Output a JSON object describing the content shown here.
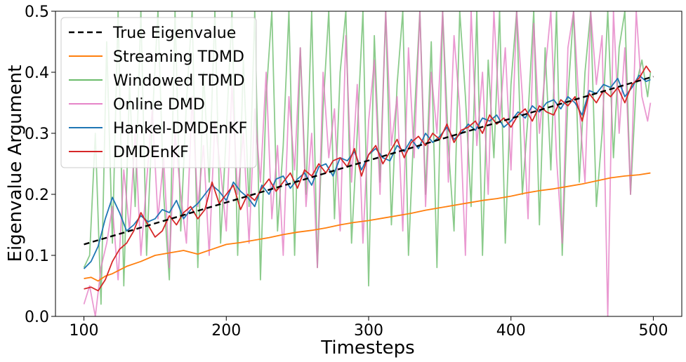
{
  "chart_data": {
    "type": "line",
    "xlabel": "Timesteps",
    "ylabel": "Eigenvalue Argument",
    "xlim": [
      80,
      520
    ],
    "ylim": [
      0.0,
      0.5
    ],
    "x_ticks": [
      100,
      200,
      300,
      400,
      500
    ],
    "y_ticks": [
      0.0,
      0.1,
      0.2,
      0.3,
      0.4,
      0.5
    ],
    "x_tick_labels": [
      "100",
      "200",
      "300",
      "400",
      "500"
    ],
    "y_tick_labels": [
      "0.0",
      "0.1",
      "0.2",
      "0.3",
      "0.4",
      "0.5"
    ],
    "legend_position": "top-left",
    "series": [
      {
        "name": "True Eigenvalue",
        "color": "#000000",
        "dashed": true,
        "x": [
          100,
          500
        ],
        "y": [
          0.118,
          0.393
        ]
      },
      {
        "name": "Streaming TDMD",
        "color": "#ff7f0e",
        "x": [
          100,
          105,
          110,
          115,
          120,
          130,
          140,
          150,
          160,
          170,
          180,
          190,
          200,
          210,
          220,
          230,
          240,
          250,
          260,
          270,
          280,
          290,
          300,
          310,
          320,
          330,
          340,
          350,
          360,
          370,
          380,
          390,
          400,
          410,
          420,
          430,
          440,
          450,
          460,
          470,
          480,
          490,
          498
        ],
        "y": [
          0.062,
          0.064,
          0.058,
          0.066,
          0.07,
          0.082,
          0.09,
          0.1,
          0.104,
          0.108,
          0.102,
          0.11,
          0.118,
          0.121,
          0.125,
          0.129,
          0.134,
          0.138,
          0.141,
          0.145,
          0.15,
          0.154,
          0.157,
          0.161,
          0.165,
          0.169,
          0.174,
          0.178,
          0.182,
          0.186,
          0.19,
          0.193,
          0.197,
          0.202,
          0.206,
          0.209,
          0.213,
          0.217,
          0.222,
          0.227,
          0.23,
          0.232,
          0.235
        ]
      },
      {
        "name": "Windowed TDMD",
        "color": "#2ca02c",
        "opacity": 0.55,
        "x": [
          100,
          104,
          108,
          112,
          116,
          120,
          124,
          128,
          132,
          136,
          140,
          144,
          148,
          152,
          156,
          160,
          164,
          168,
          172,
          176,
          180,
          184,
          188,
          192,
          196,
          200,
          204,
          208,
          212,
          216,
          220,
          224,
          228,
          232,
          236,
          240,
          244,
          248,
          252,
          256,
          260,
          264,
          268,
          272,
          276,
          280,
          284,
          288,
          292,
          296,
          300,
          304,
          308,
          312,
          316,
          320,
          324,
          328,
          332,
          336,
          340,
          344,
          348,
          352,
          356,
          360,
          364,
          368,
          372,
          376,
          380,
          384,
          388,
          392,
          396,
          400,
          404,
          408,
          412,
          416,
          420,
          424,
          428,
          432,
          436,
          440,
          444,
          448,
          452,
          456,
          460,
          464,
          468,
          472,
          476,
          480,
          484,
          488,
          492,
          496,
          498
        ],
        "y": [
          0.08,
          0.1,
          0.3,
          0.02,
          0.45,
          0.12,
          0.5,
          0.05,
          0.38,
          0.18,
          0.5,
          0.1,
          0.32,
          0.5,
          0.2,
          0.06,
          0.5,
          0.14,
          0.35,
          0.5,
          0.08,
          0.4,
          0.22,
          0.5,
          0.12,
          0.3,
          0.5,
          0.1,
          0.42,
          0.18,
          0.5,
          0.06,
          0.36,
          0.5,
          0.14,
          0.28,
          0.5,
          0.1,
          0.44,
          0.2,
          0.5,
          0.08,
          0.34,
          0.5,
          0.16,
          0.4,
          0.5,
          0.12,
          0.3,
          0.5,
          0.05,
          0.46,
          0.22,
          0.5,
          0.15,
          0.38,
          0.5,
          0.1,
          0.32,
          0.5,
          0.2,
          0.45,
          0.08,
          0.5,
          0.28,
          0.14,
          0.5,
          0.36,
          0.18,
          0.5,
          0.1,
          0.42,
          0.26,
          0.5,
          0.12,
          0.38,
          0.5,
          0.2,
          0.33,
          0.5,
          0.15,
          0.44,
          0.24,
          0.5,
          0.1,
          0.36,
          0.5,
          0.22,
          0.4,
          0.5,
          0.18,
          0.3,
          0.5,
          0.26,
          0.44,
          0.5,
          0.2,
          0.38,
          0.42,
          0.36,
          0.4
        ]
      },
      {
        "name": "Online DMD",
        "color": "#e377c2",
        "opacity": 0.75,
        "x": [
          100,
          104,
          108,
          112,
          116,
          120,
          124,
          128,
          132,
          136,
          140,
          144,
          148,
          152,
          156,
          160,
          164,
          168,
          172,
          176,
          180,
          184,
          188,
          192,
          196,
          200,
          204,
          208,
          212,
          216,
          220,
          224,
          228,
          232,
          236,
          240,
          244,
          248,
          252,
          256,
          260,
          264,
          268,
          272,
          276,
          280,
          284,
          288,
          292,
          296,
          300,
          304,
          308,
          312,
          316,
          320,
          324,
          328,
          332,
          336,
          340,
          344,
          348,
          352,
          356,
          360,
          364,
          368,
          372,
          376,
          380,
          384,
          388,
          392,
          396,
          400,
          404,
          408,
          412,
          416,
          420,
          424,
          428,
          432,
          436,
          440,
          444,
          448,
          452,
          456,
          460,
          464,
          468,
          472,
          476,
          480,
          484,
          488,
          492,
          496,
          498
        ],
        "y": [
          0.02,
          0.05,
          0.0,
          0.08,
          0.12,
          0.18,
          0.06,
          0.24,
          0.14,
          0.3,
          0.1,
          0.22,
          0.34,
          0.16,
          0.26,
          0.08,
          0.3,
          0.2,
          0.12,
          0.36,
          0.18,
          0.28,
          0.1,
          0.32,
          0.24,
          0.14,
          0.38,
          0.2,
          0.3,
          0.12,
          0.34,
          0.22,
          0.4,
          0.16,
          0.28,
          0.1,
          0.36,
          0.24,
          0.44,
          0.18,
          0.3,
          0.08,
          0.4,
          0.26,
          0.34,
          0.14,
          0.46,
          0.22,
          0.38,
          0.12,
          0.32,
          0.42,
          0.2,
          0.5,
          0.28,
          0.36,
          0.14,
          0.44,
          0.26,
          0.5,
          0.18,
          0.4,
          0.3,
          0.5,
          0.22,
          0.46,
          0.34,
          0.1,
          0.5,
          0.28,
          0.4,
          0.2,
          0.5,
          0.32,
          0.44,
          0.24,
          0.5,
          0.36,
          0.16,
          0.48,
          0.3,
          0.4,
          0.5,
          0.26,
          0.12,
          0.44,
          0.5,
          0.34,
          0.22,
          0.5,
          0.38,
          0.46,
          0.0,
          0.5,
          0.3,
          0.44,
          0.2,
          0.5,
          0.36,
          0.32,
          0.35
        ]
      },
      {
        "name": "Hankel-DMDEnKF",
        "color": "#1f77b4",
        "x": [
          100,
          105,
          110,
          115,
          120,
          125,
          130,
          135,
          140,
          145,
          150,
          155,
          160,
          165,
          170,
          175,
          180,
          185,
          190,
          195,
          200,
          205,
          210,
          215,
          220,
          225,
          230,
          235,
          240,
          245,
          250,
          255,
          260,
          265,
          270,
          275,
          280,
          285,
          290,
          295,
          300,
          305,
          310,
          315,
          320,
          325,
          330,
          335,
          340,
          345,
          350,
          355,
          360,
          365,
          370,
          375,
          380,
          385,
          390,
          395,
          400,
          405,
          410,
          415,
          420,
          425,
          430,
          435,
          440,
          445,
          450,
          455,
          460,
          465,
          470,
          475,
          480,
          485,
          490,
          495,
          498
        ],
        "y": [
          0.078,
          0.09,
          0.115,
          0.16,
          0.195,
          0.17,
          0.14,
          0.15,
          0.165,
          0.155,
          0.16,
          0.175,
          0.17,
          0.19,
          0.16,
          0.175,
          0.185,
          0.2,
          0.215,
          0.205,
          0.19,
          0.22,
          0.205,
          0.195,
          0.18,
          0.215,
          0.2,
          0.225,
          0.23,
          0.21,
          0.225,
          0.235,
          0.215,
          0.245,
          0.25,
          0.23,
          0.26,
          0.255,
          0.27,
          0.24,
          0.265,
          0.275,
          0.26,
          0.255,
          0.28,
          0.27,
          0.29,
          0.275,
          0.3,
          0.285,
          0.295,
          0.31,
          0.29,
          0.3,
          0.315,
          0.305,
          0.325,
          0.32,
          0.33,
          0.31,
          0.32,
          0.335,
          0.325,
          0.345,
          0.335,
          0.35,
          0.355,
          0.34,
          0.36,
          0.35,
          0.33,
          0.37,
          0.365,
          0.38,
          0.375,
          0.39,
          0.36,
          0.375,
          0.395,
          0.385,
          0.388
        ]
      },
      {
        "name": "DMDEnKF",
        "color": "#d62728",
        "x": [
          100,
          105,
          110,
          115,
          120,
          125,
          130,
          135,
          140,
          145,
          150,
          155,
          160,
          165,
          170,
          175,
          180,
          185,
          190,
          195,
          200,
          205,
          210,
          215,
          220,
          225,
          230,
          235,
          240,
          245,
          250,
          255,
          260,
          265,
          270,
          275,
          280,
          285,
          290,
          295,
          300,
          305,
          310,
          315,
          320,
          325,
          330,
          335,
          340,
          345,
          350,
          355,
          360,
          365,
          370,
          375,
          380,
          385,
          390,
          395,
          400,
          405,
          410,
          415,
          420,
          425,
          430,
          435,
          440,
          445,
          450,
          455,
          460,
          465,
          470,
          475,
          480,
          485,
          490,
          495,
          498
        ],
        "y": [
          0.045,
          0.048,
          0.042,
          0.06,
          0.09,
          0.11,
          0.12,
          0.14,
          0.17,
          0.15,
          0.13,
          0.14,
          0.165,
          0.15,
          0.17,
          0.18,
          0.16,
          0.175,
          0.22,
          0.185,
          0.2,
          0.215,
          0.175,
          0.2,
          0.19,
          0.21,
          0.225,
          0.205,
          0.22,
          0.235,
          0.21,
          0.24,
          0.23,
          0.25,
          0.235,
          0.255,
          0.26,
          0.245,
          0.275,
          0.23,
          0.265,
          0.28,
          0.25,
          0.27,
          0.29,
          0.26,
          0.285,
          0.295,
          0.28,
          0.3,
          0.29,
          0.315,
          0.285,
          0.305,
          0.31,
          0.32,
          0.3,
          0.33,
          0.315,
          0.325,
          0.31,
          0.33,
          0.34,
          0.32,
          0.345,
          0.335,
          0.33,
          0.355,
          0.345,
          0.36,
          0.32,
          0.365,
          0.35,
          0.37,
          0.36,
          0.375,
          0.35,
          0.38,
          0.39,
          0.41,
          0.4
        ]
      }
    ]
  }
}
